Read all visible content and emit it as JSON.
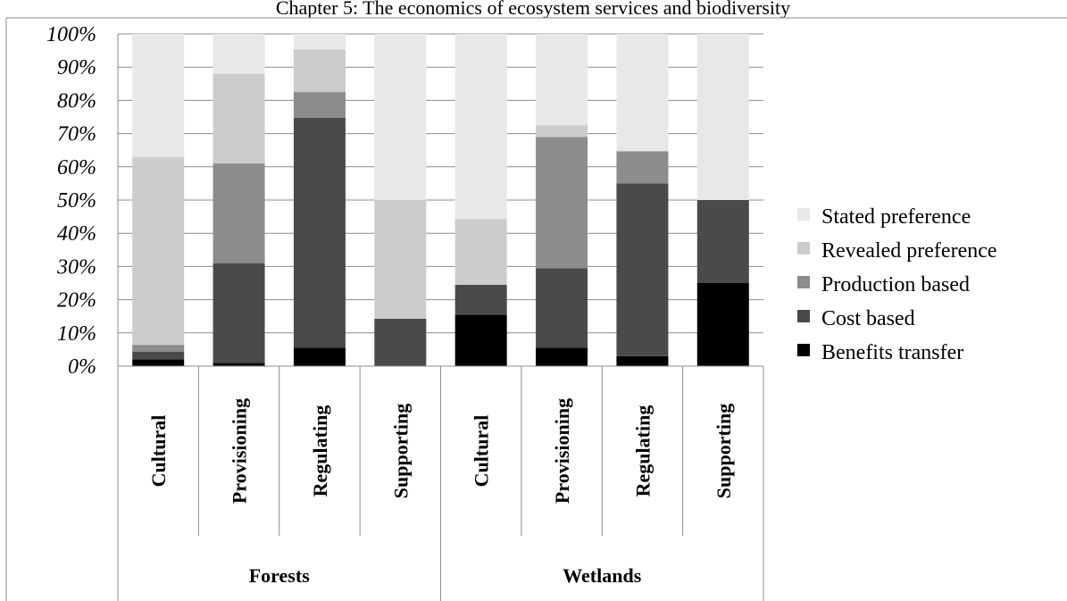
{
  "page_header": "Chapter 5: The economics of ecosystem services and biodiversity",
  "chart_data": {
    "type": "bar",
    "stacked": true,
    "percent": true,
    "groups": [
      {
        "label": "Forests",
        "categories": [
          "Cultural",
          "Provisioning",
          "Regulating",
          "Supporting"
        ]
      },
      {
        "label": "Wetlands",
        "categories": [
          "Cultural",
          "Provisioning",
          "Regulating",
          "Supporting"
        ]
      }
    ],
    "series": [
      {
        "name": "Benefits transfer",
        "color": "#000000",
        "values": [
          2,
          1,
          5.5,
          0,
          15.5,
          5.5,
          3,
          25
        ]
      },
      {
        "name": "Cost based",
        "color": "#4a4a4a",
        "values": [
          2.3,
          30,
          69.3,
          14.3,
          9,
          24,
          52,
          25
        ]
      },
      {
        "name": "Production based",
        "color": "#8c8c8c",
        "values": [
          2.1,
          30,
          7.7,
          0,
          0,
          39.5,
          9.7,
          0
        ]
      },
      {
        "name": "Revealed preference",
        "color": "#cccccc",
        "values": [
          56.6,
          27,
          12.8,
          35.7,
          19.8,
          3.5,
          0,
          0
        ]
      },
      {
        "name": "Stated preference",
        "color": "#e8e8e8",
        "values": [
          37,
          12,
          4.7,
          50,
          55.7,
          27.5,
          35.3,
          50
        ]
      }
    ],
    "yticks": [
      "0%",
      "10%",
      "20%",
      "30%",
      "40%",
      "50%",
      "60%",
      "70%",
      "80%",
      "90%",
      "100%"
    ],
    "ylim": [
      0,
      100
    ],
    "grid": true,
    "legend_position": "right"
  }
}
